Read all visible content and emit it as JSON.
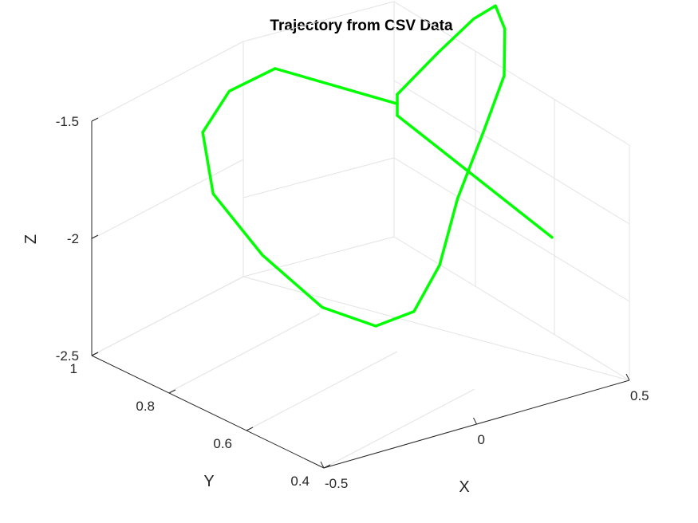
{
  "chart_data": {
    "type": "line",
    "dimensions": "3d",
    "title": "Trajectory from CSV Data",
    "xlabel": "X",
    "ylabel": "Y",
    "zlabel": "Z",
    "xlim": [
      -0.5,
      0.5
    ],
    "ylim": [
      0.4,
      1.0
    ],
    "zlim": [
      -2.5,
      -1.5
    ],
    "xticks": [
      -0.5,
      0,
      0.5
    ],
    "yticks": [
      0.4,
      0.6,
      0.8,
      1.0
    ],
    "zticks": [
      -2.5,
      -2,
      -1.5
    ],
    "xtick_labels": [
      "-0.5",
      "0",
      "0.5"
    ],
    "ytick_labels": [
      "0.4",
      "0.6",
      "0.8",
      "1"
    ],
    "ztick_labels": [
      "-2.5",
      "-2",
      "-1.5"
    ],
    "grid": true,
    "line_color": "#00ff00",
    "series": [
      {
        "segments": [
          {
            "description": "straight start segment",
            "x": [
              0.5,
              0.5,
              0.5
            ],
            "y": [
              0.6,
              0.8,
              1.0
            ],
            "z": [
              -2.05,
              -1.95,
              -1.85
            ]
          },
          {
            "description": "vertical rise",
            "x": [
              0.5,
              0.5
            ],
            "y": [
              1.0,
              1.0
            ],
            "z": [
              -1.85,
              -1.76
            ]
          },
          {
            "description": "first loop",
            "x": [
              0.5,
              0.62,
              0.7,
              0.72,
              0.7,
              0.66,
              0.58,
              0.52
            ],
            "y": [
              1.0,
              0.99,
              0.96,
              0.92,
              0.88,
              0.85,
              0.84,
              0.86
            ],
            "z": [
              -1.76,
              -1.62,
              -1.48,
              -1.4,
              -1.46,
              -1.62,
              -1.82,
              -2.1
            ]
          },
          {
            "description": "large ellipse",
            "x": [
              0.52,
              0.36,
              0.2,
              0.05,
              -0.1,
              -0.22,
              -0.28,
              -0.2,
              -0.05,
              0.1
            ],
            "y": [
              0.86,
              0.78,
              0.72,
              0.7,
              0.72,
              0.78,
              0.86,
              0.95,
              1.0,
              1.0
            ],
            "z": [
              -2.1,
              -2.26,
              -2.35,
              -2.34,
              -2.22,
              -2.0,
              -1.78,
              -1.62,
              -1.54,
              -1.5
            ]
          },
          {
            "description": "return line",
            "x": [
              0.1,
              0.5
            ],
            "y": [
              1.0,
              1.0
            ],
            "z": [
              -1.5,
              -1.8
            ]
          }
        ]
      }
    ]
  }
}
